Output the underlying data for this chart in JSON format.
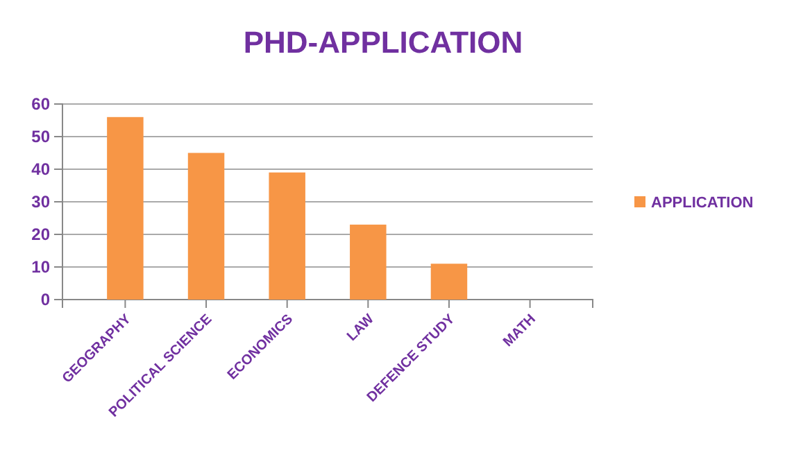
{
  "chart_data": {
    "type": "bar",
    "title": "PHD-APPLICATION",
    "categories": [
      "GEOGRAPHY",
      "POLITICAL SCIENCE",
      "ECONOMICS",
      "LAW",
      "DEFENCE STUDY",
      "MATH"
    ],
    "series": [
      {
        "name": "APPLICATION",
        "color": "#f79646",
        "values": [
          56,
          45,
          39,
          23,
          11,
          0
        ]
      }
    ],
    "ylim": [
      0,
      60
    ],
    "yticks": [
      0,
      10,
      20,
      30,
      40,
      50,
      60
    ],
    "grid": "y",
    "legend": "right"
  }
}
